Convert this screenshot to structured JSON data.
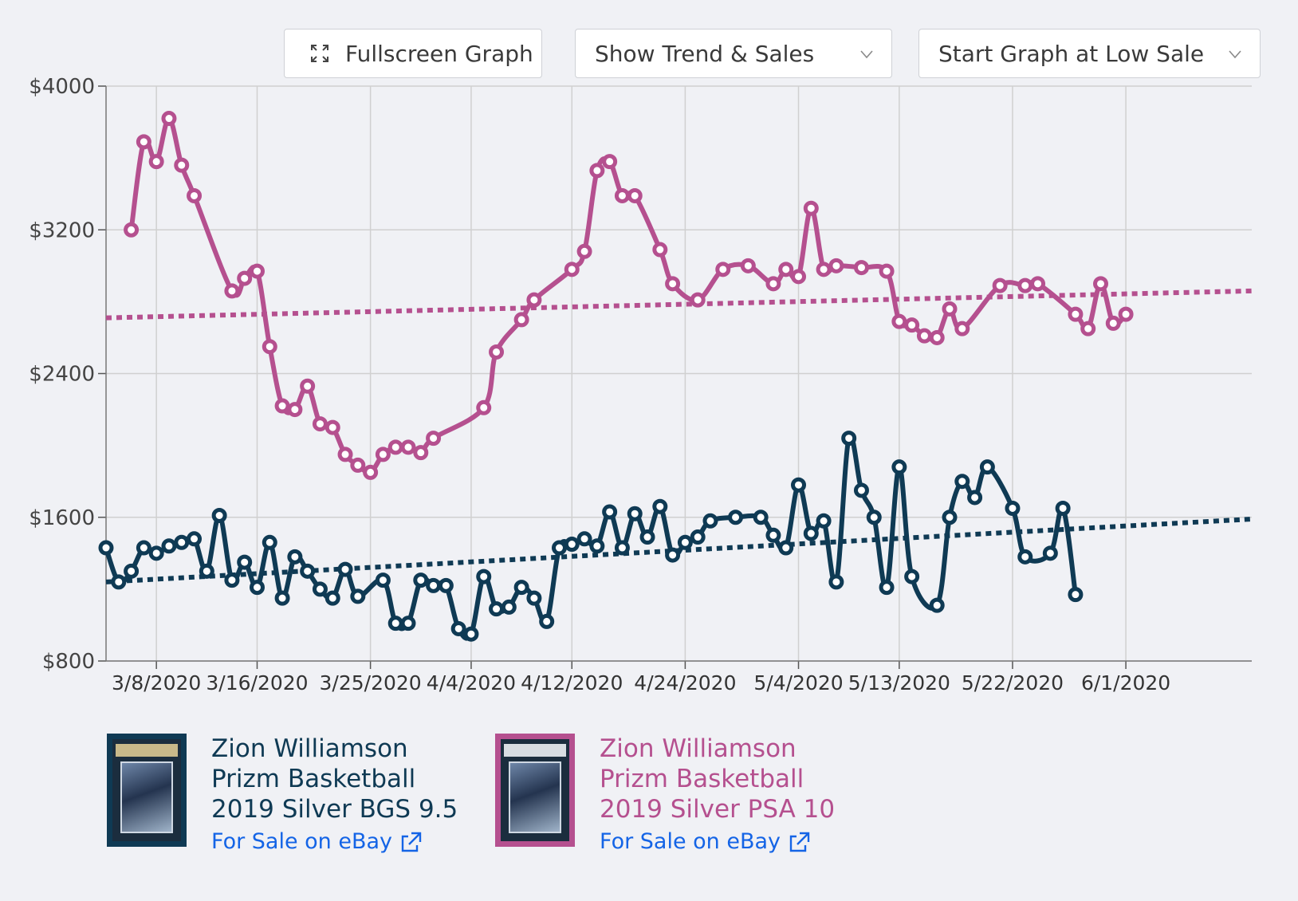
{
  "toolbar": {
    "fullscreen_label": "Fullscreen Graph",
    "trend_label": "Show Trend & Sales",
    "start_label": "Start Graph at Low Sale"
  },
  "colors": {
    "series_bgs": "#0f3a54",
    "series_psa": "#b5508f",
    "background": "#f0f1f5",
    "grid": "#d0d0d0"
  },
  "cards": [
    {
      "line1": "Zion Williamson",
      "line2": "Prizm Basketball",
      "line3": "2019 Silver BGS 9.5",
      "link": "For Sale on eBay"
    },
    {
      "line1": "Zion Williamson",
      "line2": "Prizm Basketball",
      "line3": "2019 Silver PSA 10",
      "link": "For Sale on eBay"
    }
  ],
  "chart_data": {
    "type": "line",
    "title": "",
    "xlabel": "",
    "ylabel": "",
    "x_range_days": [
      0,
      91
    ],
    "x_ticks": [
      {
        "day": 4,
        "label": "3/8/2020"
      },
      {
        "day": 12,
        "label": "3/16/2020"
      },
      {
        "day": 21,
        "label": "3/25/2020"
      },
      {
        "day": 29,
        "label": "4/4/2020"
      },
      {
        "day": 37,
        "label": "4/12/2020"
      },
      {
        "day": 46,
        "label": "4/24/2020"
      },
      {
        "day": 55,
        "label": "5/4/2020"
      },
      {
        "day": 63,
        "label": "5/13/2020"
      },
      {
        "day": 72,
        "label": "5/22/2020"
      },
      {
        "day": 81,
        "label": "6/1/2020"
      }
    ],
    "ylim": [
      800,
      4000
    ],
    "y_ticks": [
      {
        "value": 800,
        "label": "$800"
      },
      {
        "value": 1600,
        "label": "$1600"
      },
      {
        "value": 2400,
        "label": "$2400"
      },
      {
        "value": 3200,
        "label": "$3200"
      },
      {
        "value": 4000,
        "label": "$4000"
      }
    ],
    "grid": true,
    "series": [
      {
        "name": "Zion Williamson Prizm Basketball 2019 Silver PSA 10",
        "color": "#b5508f",
        "trend": [
          2710,
          2860
        ],
        "points": [
          [
            2.0,
            3200
          ],
          [
            3.0,
            3690
          ],
          [
            4.0,
            3580
          ],
          [
            5.0,
            3820
          ],
          [
            6.0,
            3560
          ],
          [
            7.0,
            3390
          ],
          [
            10.0,
            2860
          ],
          [
            11.0,
            2930
          ],
          [
            12.0,
            2970
          ],
          [
            13.0,
            2550
          ],
          [
            14.0,
            2220
          ],
          [
            15.0,
            2200
          ],
          [
            16.0,
            2330
          ],
          [
            17.0,
            2120
          ],
          [
            18.0,
            2100
          ],
          [
            19.0,
            1950
          ],
          [
            20.0,
            1890
          ],
          [
            21.0,
            1850
          ],
          [
            22.0,
            1950
          ],
          [
            23.0,
            1990
          ],
          [
            24.0,
            1990
          ],
          [
            25.0,
            1960
          ],
          [
            26.0,
            2040
          ],
          [
            30.0,
            2210
          ],
          [
            31.0,
            2520
          ],
          [
            33.0,
            2700
          ],
          [
            34.0,
            2810
          ],
          [
            37.0,
            2980
          ],
          [
            38.0,
            3080
          ],
          [
            39.0,
            3530
          ],
          [
            40.0,
            3580
          ],
          [
            41.0,
            3390
          ],
          [
            42.0,
            3390
          ],
          [
            44.0,
            3090
          ],
          [
            45.0,
            2900
          ],
          [
            47.0,
            2810
          ],
          [
            49.0,
            2980
          ],
          [
            51.0,
            3000
          ],
          [
            53.0,
            2900
          ],
          [
            54.0,
            2980
          ],
          [
            55.0,
            2940
          ],
          [
            56.0,
            3320
          ],
          [
            57.0,
            2980
          ],
          [
            58.0,
            3000
          ],
          [
            60.0,
            2990
          ],
          [
            62.0,
            2970
          ],
          [
            63.0,
            2690
          ],
          [
            64.0,
            2670
          ],
          [
            65.0,
            2610
          ],
          [
            66.0,
            2600
          ],
          [
            67.0,
            2760
          ],
          [
            68.0,
            2650
          ],
          [
            71.0,
            2890
          ],
          [
            73.0,
            2890
          ],
          [
            74.0,
            2900
          ],
          [
            77.0,
            2730
          ],
          [
            78.0,
            2650
          ],
          [
            79.0,
            2900
          ],
          [
            80.0,
            2680
          ],
          [
            81.0,
            2730
          ]
        ]
      },
      {
        "name": "Zion Williamson Prizm Basketball 2019 Silver BGS 9.5",
        "color": "#0f3a54",
        "trend": [
          1240,
          1590
        ],
        "points": [
          [
            0.0,
            1430
          ],
          [
            1.0,
            1240
          ],
          [
            2.0,
            1300
          ],
          [
            3.0,
            1430
          ],
          [
            4.0,
            1400
          ],
          [
            5.0,
            1440
          ],
          [
            6.0,
            1460
          ],
          [
            7.0,
            1480
          ],
          [
            8.0,
            1300
          ],
          [
            9.0,
            1610
          ],
          [
            10.0,
            1250
          ],
          [
            11.0,
            1350
          ],
          [
            12.0,
            1210
          ],
          [
            13.0,
            1460
          ],
          [
            14.0,
            1150
          ],
          [
            15.0,
            1380
          ],
          [
            16.0,
            1300
          ],
          [
            17.0,
            1200
          ],
          [
            18.0,
            1150
          ],
          [
            19.0,
            1310
          ],
          [
            20.0,
            1160
          ],
          [
            22.0,
            1250
          ],
          [
            23.0,
            1010
          ],
          [
            24.0,
            1010
          ],
          [
            25.0,
            1250
          ],
          [
            26.0,
            1220
          ],
          [
            27.0,
            1220
          ],
          [
            28.0,
            980
          ],
          [
            29.0,
            950
          ],
          [
            30.0,
            1270
          ],
          [
            31.0,
            1090
          ],
          [
            32.0,
            1100
          ],
          [
            33.0,
            1210
          ],
          [
            34.0,
            1150
          ],
          [
            35.0,
            1020
          ],
          [
            36.0,
            1430
          ],
          [
            37.0,
            1450
          ],
          [
            38.0,
            1480
          ],
          [
            39.0,
            1440
          ],
          [
            40.0,
            1630
          ],
          [
            41.0,
            1430
          ],
          [
            42.0,
            1620
          ],
          [
            43.0,
            1490
          ],
          [
            44.0,
            1660
          ],
          [
            45.0,
            1390
          ],
          [
            46.0,
            1460
          ],
          [
            47.0,
            1490
          ],
          [
            48.0,
            1580
          ],
          [
            50.0,
            1600
          ],
          [
            52.0,
            1600
          ],
          [
            53.0,
            1500
          ],
          [
            54.0,
            1430
          ],
          [
            55.0,
            1780
          ],
          [
            56.0,
            1510
          ],
          [
            57.0,
            1580
          ],
          [
            58.0,
            1240
          ],
          [
            59.0,
            2040
          ],
          [
            60.0,
            1750
          ],
          [
            61.0,
            1600
          ],
          [
            62.0,
            1210
          ],
          [
            63.0,
            1880
          ],
          [
            64.0,
            1270
          ],
          [
            66.0,
            1110
          ],
          [
            67.0,
            1600
          ],
          [
            68.0,
            1800
          ],
          [
            69.0,
            1710
          ],
          [
            70.0,
            1880
          ],
          [
            72.0,
            1650
          ],
          [
            73.0,
            1380
          ],
          [
            75.0,
            1400
          ],
          [
            76.0,
            1650
          ],
          [
            77.0,
            1170
          ]
        ]
      }
    ]
  }
}
